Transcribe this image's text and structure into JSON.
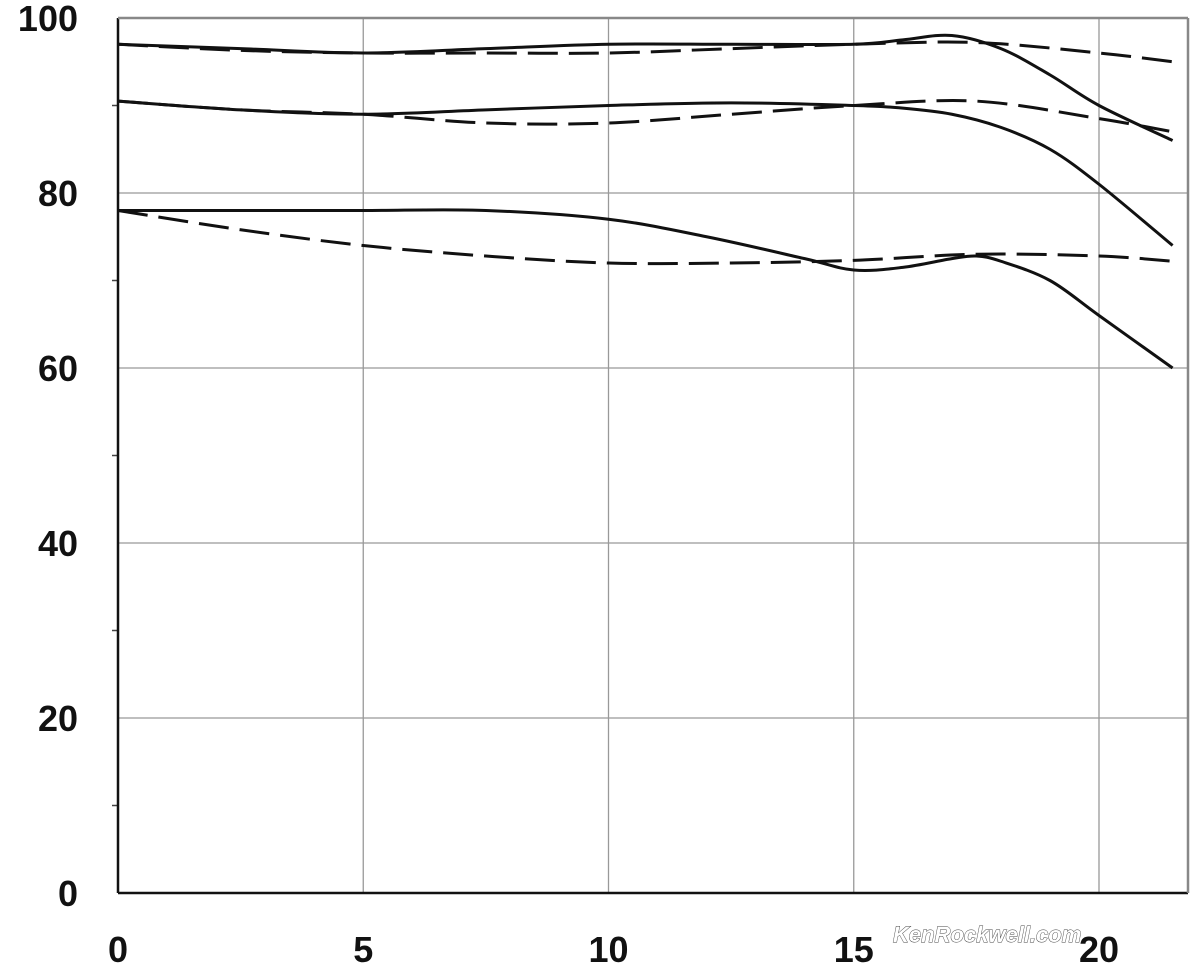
{
  "chart_data": {
    "type": "line",
    "title": "",
    "xlabel": "",
    "ylabel": "",
    "xlim": [
      0,
      21.6
    ],
    "ylim": [
      0,
      100
    ],
    "x_ticks": [
      0,
      5,
      10,
      15,
      20
    ],
    "x_tick_labels": [
      "0",
      "5",
      "10",
      "15",
      "20"
    ],
    "y_ticks": [
      0,
      20,
      40,
      60,
      80,
      100
    ],
    "y_tick_labels": [
      "0",
      "20",
      "40",
      "60",
      "80",
      "100"
    ],
    "y_minor_ticks": [
      10,
      30,
      50,
      70,
      90
    ],
    "grid": true,
    "legend": "none",
    "colors": {
      "line": "#111111",
      "grid": "#999999",
      "frame": "#888888",
      "background": "#ffffff"
    },
    "series": [
      {
        "style": "solid",
        "x": [
          0,
          2.5,
          5,
          7.5,
          10,
          12.5,
          15,
          16,
          17,
          18,
          19,
          20,
          21.5
        ],
        "y": [
          97,
          96.5,
          96,
          96.5,
          97,
          97,
          97,
          97.5,
          98,
          96.5,
          93.5,
          90,
          86
        ]
      },
      {
        "style": "dashed",
        "x": [
          0,
          2.5,
          5,
          7.5,
          10,
          12.5,
          15,
          17.5,
          20,
          21.5
        ],
        "y": [
          97,
          96.3,
          96,
          96,
          96,
          96.5,
          97,
          97.2,
          96,
          95
        ]
      },
      {
        "style": "solid",
        "x": [
          0,
          2.5,
          5,
          7.5,
          10,
          12.5,
          15,
          16,
          17,
          18,
          19,
          20,
          21.5
        ],
        "y": [
          90.5,
          89.5,
          89,
          89.5,
          90,
          90.3,
          90,
          89.7,
          89,
          87.5,
          85,
          81,
          74
        ]
      },
      {
        "style": "dashed",
        "x": [
          0,
          2.5,
          5,
          7.5,
          10,
          12.5,
          15,
          17.5,
          20,
          21.5
        ],
        "y": [
          90.5,
          89.5,
          89,
          88,
          88,
          89,
          90,
          90.5,
          88.5,
          87
        ]
      },
      {
        "style": "solid",
        "x": [
          0,
          2.5,
          5,
          7.5,
          10,
          12,
          14,
          15,
          16,
          17,
          17.5,
          18,
          19,
          20,
          21.5
        ],
        "y": [
          78,
          78,
          78,
          78,
          77,
          75,
          72.5,
          71.2,
          71.5,
          72.5,
          72.8,
          72.2,
          70,
          66,
          60
        ]
      },
      {
        "style": "dashed",
        "x": [
          0,
          2.5,
          5,
          7.5,
          10,
          12.5,
          15,
          17.5,
          20,
          21.5
        ],
        "y": [
          78,
          75.8,
          74,
          72.8,
          72,
          72,
          72.3,
          73,
          72.8,
          72.2
        ]
      }
    ]
  },
  "watermark": "KenRockwell.com"
}
